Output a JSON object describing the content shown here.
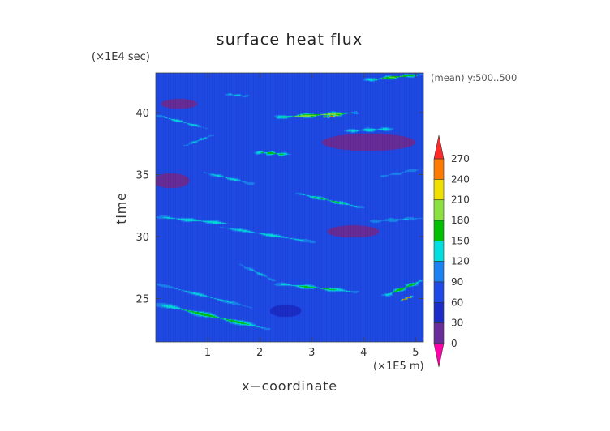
{
  "chart_data": {
    "type": "heatmap",
    "title": "surface heat flux",
    "xlabel": "x−coordinate",
    "ylabel": "time",
    "x_unit": "(×1E5 m)",
    "y_unit": "(×1E4 sec)",
    "annotation": "(mean) y:500..500",
    "xlim": [
      0,
      5.15
    ],
    "ylim": [
      21.5,
      43.2
    ],
    "x_ticks": [
      1,
      2,
      3,
      4,
      5
    ],
    "y_ticks": [
      25,
      30,
      35,
      40
    ],
    "colorbar": {
      "levels": [
        0,
        30,
        60,
        90,
        120,
        150,
        180,
        210,
        240,
        270
      ],
      "colors": [
        "#ff00aa",
        "#6a2c9a",
        "#1c2cc8",
        "#1f4ae8",
        "#1a82f2",
        "#00dede",
        "#00c000",
        "#8ce040",
        "#f0e000",
        "#ff7a00",
        "#ff2a2a"
      ]
    },
    "background_value": 75,
    "features": [
      {
        "kind": "band",
        "x0": 0.0,
        "t0": 24.6,
        "x1": 2.2,
        "t1": 22.5,
        "peak": 170,
        "width": 0.45
      },
      {
        "kind": "band",
        "x0": 0.0,
        "t0": 26.2,
        "x1": 1.9,
        "t1": 24.2,
        "peak": 130,
        "width": 0.3
      },
      {
        "kind": "band",
        "x0": 2.3,
        "t0": 26.2,
        "x1": 3.9,
        "t1": 25.5,
        "peak": 160,
        "width": 0.35
      },
      {
        "kind": "band",
        "x0": 4.4,
        "t0": 25.2,
        "x1": 5.15,
        "t1": 26.5,
        "peak": 175,
        "width": 0.35
      },
      {
        "kind": "band",
        "x0": 2.3,
        "t0": 26.4,
        "x1": 1.6,
        "t1": 27.8,
        "peak": 125,
        "width": 0.25
      },
      {
        "kind": "band",
        "x0": 0.0,
        "t0": 31.6,
        "x1": 1.5,
        "t1": 31.0,
        "peak": 150,
        "width": 0.3
      },
      {
        "kind": "band",
        "x0": 1.2,
        "t0": 30.8,
        "x1": 3.1,
        "t1": 29.5,
        "peak": 140,
        "width": 0.3
      },
      {
        "kind": "band",
        "x0": 2.7,
        "t0": 33.5,
        "x1": 4.0,
        "t1": 32.3,
        "peak": 160,
        "width": 0.3
      },
      {
        "kind": "band",
        "x0": 4.1,
        "t0": 31.2,
        "x1": 5.15,
        "t1": 31.5,
        "peak": 125,
        "width": 0.3
      },
      {
        "kind": "band",
        "x0": 0.9,
        "t0": 35.2,
        "x1": 1.9,
        "t1": 34.2,
        "peak": 135,
        "width": 0.3
      },
      {
        "kind": "band",
        "x0": 1.9,
        "t0": 36.8,
        "x1": 2.6,
        "t1": 36.6,
        "peak": 170,
        "width": 0.3
      },
      {
        "kind": "band",
        "x0": 0.55,
        "t0": 37.3,
        "x1": 1.1,
        "t1": 38.2,
        "peak": 130,
        "width": 0.25
      },
      {
        "kind": "band",
        "x0": 0.0,
        "t0": 39.8,
        "x1": 1.0,
        "t1": 38.7,
        "peak": 140,
        "width": 0.25
      },
      {
        "kind": "band",
        "x0": 2.3,
        "t0": 39.6,
        "x1": 3.9,
        "t1": 40.0,
        "peak": 210,
        "width": 0.3
      },
      {
        "kind": "band",
        "x0": 3.2,
        "t0": 39.6,
        "x1": 3.55,
        "t1": 39.8,
        "peak": 260,
        "width": 0.2
      },
      {
        "kind": "band",
        "x0": 3.6,
        "t0": 38.5,
        "x1": 4.6,
        "t1": 38.7,
        "peak": 150,
        "width": 0.3
      },
      {
        "kind": "band",
        "x0": 4.0,
        "t0": 42.6,
        "x1": 5.15,
        "t1": 43.1,
        "peak": 185,
        "width": 0.3
      },
      {
        "kind": "band",
        "x0": 1.3,
        "t0": 41.5,
        "x1": 1.8,
        "t1": 41.3,
        "peak": 130,
        "width": 0.25
      },
      {
        "kind": "band",
        "x0": 4.3,
        "t0": 34.8,
        "x1": 5.15,
        "t1": 35.5,
        "peak": 120,
        "width": 0.3
      },
      {
        "kind": "band",
        "x0": 4.7,
        "t0": 24.8,
        "x1": 4.95,
        "t1": 25.2,
        "peak": 265,
        "width": 0.2
      },
      {
        "kind": "blob",
        "x": 4.1,
        "t": 37.6,
        "rx": 0.9,
        "rt": 0.7,
        "value": 20
      },
      {
        "kind": "blob",
        "x": 0.3,
        "t": 34.5,
        "rx": 0.35,
        "rt": 0.6,
        "value": 25
      },
      {
        "kind": "blob",
        "x": 0.45,
        "t": 40.7,
        "rx": 0.35,
        "rt": 0.4,
        "value": 25
      },
      {
        "kind": "blob",
        "x": 3.8,
        "t": 30.4,
        "rx": 0.5,
        "rt": 0.5,
        "value": 25
      },
      {
        "kind": "blob",
        "x": 2.5,
        "t": 24.0,
        "rx": 0.3,
        "rt": 0.5,
        "value": 30
      }
    ]
  }
}
